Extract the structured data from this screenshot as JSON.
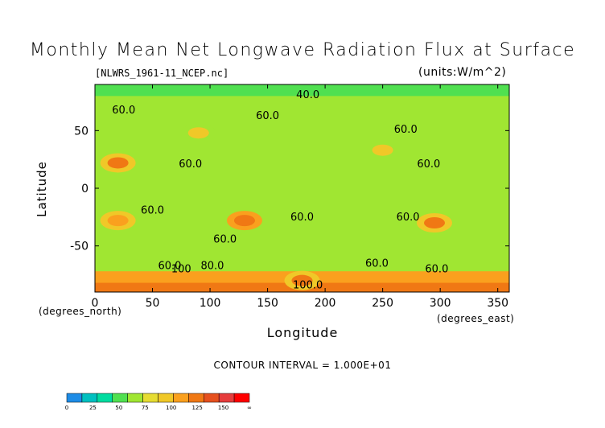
{
  "title": "Monthly Mean Net Longwave Radiation Flux at Surface",
  "source_file": "[NLWRS_1961-11_NCEP.nc]",
  "units": "(units:W/m^2)",
  "contour_interval": "CONTOUR INTERVAL = 1.000E+01",
  "chart_data": {
    "type": "heatmap",
    "title": "Monthly Mean Net Longwave Radiation Flux at Surface",
    "xlabel": "Longitude",
    "ylabel": "Latitude",
    "x_unit_label": "(degrees_east)",
    "y_unit_label": "(degrees_north)",
    "xlim": [
      0,
      360
    ],
    "ylim": [
      -90,
      90
    ],
    "x_ticks": [
      0,
      50,
      100,
      150,
      200,
      250,
      300,
      350
    ],
    "y_ticks": [
      50,
      0,
      -50
    ],
    "contour_labels": [
      {
        "text": "40.0",
        "lon": 185,
        "lat": 78
      },
      {
        "text": "60.0",
        "lon": 25,
        "lat": 65
      },
      {
        "text": "60.0",
        "lon": 150,
        "lat": 60
      },
      {
        "text": "60.0",
        "lon": 270,
        "lat": 48
      },
      {
        "text": "60.0",
        "lon": 83,
        "lat": 18
      },
      {
        "text": "60.0",
        "lon": 290,
        "lat": 18
      },
      {
        "text": "60.0",
        "lon": 50,
        "lat": -22
      },
      {
        "text": "60.0",
        "lon": 180,
        "lat": -28
      },
      {
        "text": "60.0",
        "lon": 272,
        "lat": -28
      },
      {
        "text": "60.0",
        "lon": 113,
        "lat": -47
      },
      {
        "text": "60.0",
        "lon": 245,
        "lat": -68
      },
      {
        "text": "60.0",
        "lon": 65,
        "lat": -70
      },
      {
        "text": "80.0",
        "lon": 102,
        "lat": -70
      },
      {
        "text": "60.0",
        "lon": 297,
        "lat": -73
      },
      {
        "text": "100.0",
        "lon": 185,
        "lat": -87
      },
      {
        "text": "100",
        "lon": 75,
        "lat": -73
      }
    ],
    "colorbar": {
      "tick_labels": [
        "0",
        "25",
        "50",
        "75",
        "100",
        "125",
        "150",
        "∞"
      ],
      "colors": [
        "#1e8ce6",
        "#00c0c0",
        "#00dca0",
        "#50e050",
        "#a0e632",
        "#e6dc32",
        "#f0c828",
        "#faa01e",
        "#f07814",
        "#e6501e",
        "#e63c3c",
        "#ff0000"
      ]
    },
    "regions": [
      {
        "lon": 90,
        "lat": 48,
        "value": 75
      },
      {
        "lon": 20,
        "lat": 22,
        "value": 100
      },
      {
        "lon": 130,
        "lat": -28,
        "value": 110
      },
      {
        "lon": 20,
        "lat": -28,
        "value": 95
      },
      {
        "lon": 295,
        "lat": -30,
        "value": 100
      },
      {
        "lon": 250,
        "lat": 33,
        "value": 80
      },
      {
        "lon": 180,
        "lat": -80,
        "value": 100
      }
    ]
  }
}
